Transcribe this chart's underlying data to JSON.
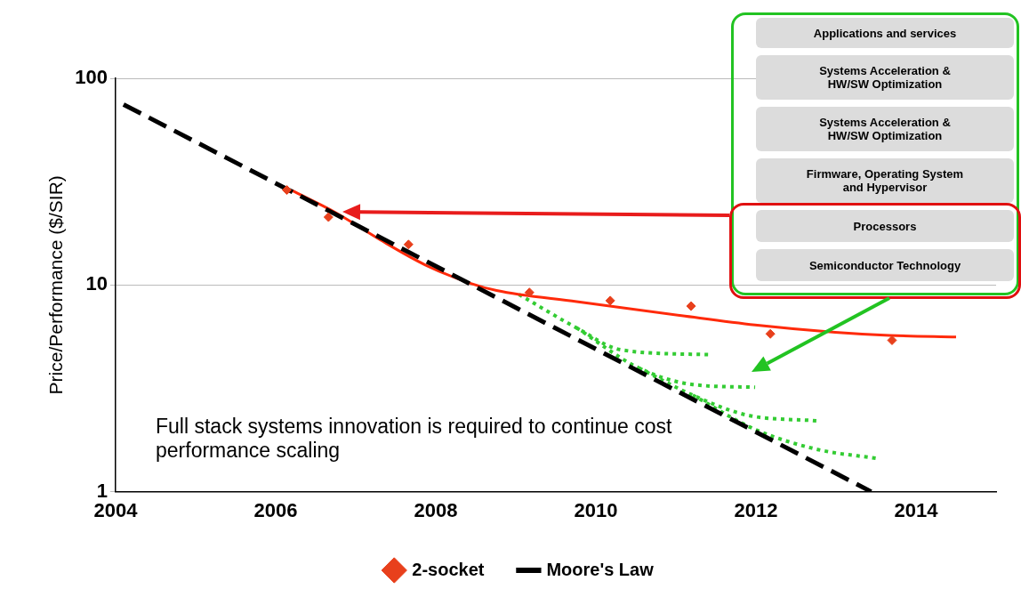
{
  "chart_data": {
    "type": "scatter",
    "ylabel": "Price/Performance ($/SIR)",
    "xlim": [
      2004,
      2015
    ],
    "xticks": [
      2004,
      2006,
      2008,
      2010,
      2012,
      2014
    ],
    "ylim": [
      1,
      100
    ],
    "yticks": [
      1,
      10,
      100
    ],
    "log": "y",
    "grid": "y",
    "legend": "bottom",
    "series": [
      {
        "type": "scatter",
        "name": "2-socket",
        "color": "#e8401c",
        "marker": "diamond",
        "x": [
          2006.14,
          2006.66,
          2007.66,
          2009.17,
          2010.18,
          2011.19,
          2012.18,
          2013.7
        ],
        "values": [
          28.8,
          21.3,
          15.7,
          9.2,
          8.4,
          7.9,
          5.8,
          5.4
        ]
      },
      {
        "type": "line",
        "name": "Moore's Law",
        "color": "#000000",
        "line_style": "dashed",
        "x": [
          2004.1,
          2013.44
        ],
        "values": [
          74.7,
          1
        ]
      },
      {
        "type": "line",
        "color": "#ff2a0a",
        "line_style": "solid",
        "x": [
          2006.2,
          2006.75,
          2007.31,
          2007.87,
          2008.43,
          2008.76,
          2009.76,
          2011.07,
          2011.99,
          2012.99,
          2013.67,
          2014.5
        ],
        "values": [
          28.7,
          22.4,
          16.5,
          12.5,
          10.2,
          9.4,
          8.3,
          7.1,
          6.4,
          5.9,
          5.7,
          5.6
        ]
      },
      {
        "type": "line",
        "color": "#33cc33",
        "line_style": "dotted",
        "x": [
          2009.04,
          2009.76,
          2010.32,
          2011.44
        ],
        "values": [
          9.0,
          6.2,
          4.85,
          4.6
        ]
      },
      {
        "type": "line",
        "color": "#33cc33",
        "line_style": "dotted",
        "x": [
          2009.76,
          2010.54,
          2011.21,
          2011.99
        ],
        "values": [
          6.2,
          3.96,
          3.3,
          3.2
        ]
      },
      {
        "type": "line",
        "color": "#33cc33",
        "line_style": "dotted",
        "x": [
          2010.54,
          2011.21,
          2011.88,
          2012.77
        ],
        "values": [
          3.96,
          2.93,
          2.35,
          2.2
        ]
      },
      {
        "type": "line",
        "color": "#33cc33",
        "line_style": "dotted",
        "x": [
          2011.21,
          2011.99,
          2012.77,
          2013.5
        ],
        "values": [
          2.93,
          2.0,
          1.6,
          1.45
        ]
      }
    ],
    "annotations": [
      "Applications and services",
      "Systems Acceleration & HW/SW Optimization",
      "Systems Acceleration & HW/SW Optimization",
      "Firmware, Operating System and Hypervisor",
      "Processors",
      "Semiconductor Technology",
      "Full stack systems innovation is required to continue cost performance scaling"
    ]
  }
}
